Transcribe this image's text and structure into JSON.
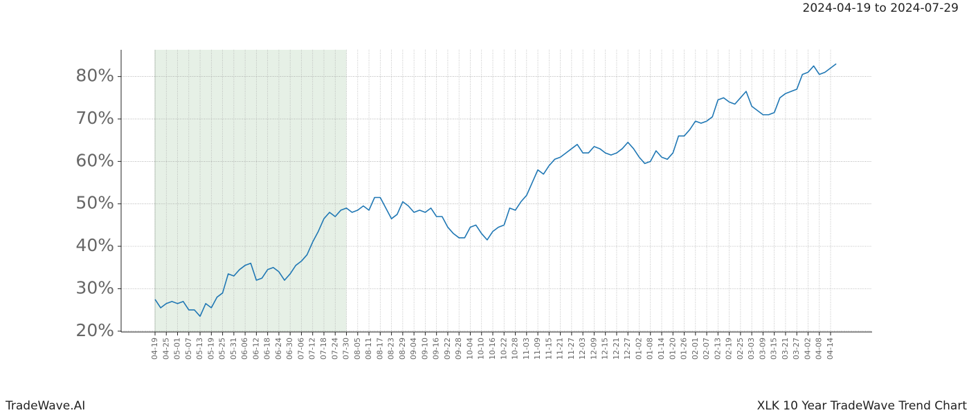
{
  "chart_data": {
    "type": "line",
    "title": "2024-04-19 to 2024-07-29",
    "footer_left": "TradeWave.AI",
    "footer_right": "XLK 10 Year TradeWave Trend Chart",
    "categories": [
      "04-19",
      null,
      "04-25",
      null,
      "05-01",
      null,
      "05-07",
      null,
      "05-13",
      null,
      "05-19",
      null,
      "05-25",
      null,
      "05-31",
      null,
      "06-06",
      null,
      "06-12",
      null,
      "06-18",
      null,
      "06-24",
      null,
      "06-30",
      null,
      "07-06",
      null,
      "07-12",
      null,
      "07-18",
      null,
      "07-24",
      null,
      "07-30",
      null,
      "08-05",
      null,
      "08-11",
      null,
      "08-17",
      null,
      "08-23",
      null,
      "08-29",
      null,
      "09-04",
      null,
      "09-10",
      null,
      "09-16",
      null,
      "09-22",
      null,
      "09-28",
      null,
      "10-04",
      null,
      "10-10",
      null,
      "10-16",
      null,
      "10-22",
      null,
      "10-28",
      null,
      "11-03",
      null,
      "11-09",
      null,
      "11-15",
      null,
      "11-21",
      null,
      "11-27",
      null,
      "12-03",
      null,
      "12-09",
      null,
      "12-15",
      null,
      "12-21",
      null,
      "12-27",
      null,
      "01-02",
      null,
      "01-08",
      null,
      "01-14",
      null,
      "01-20",
      null,
      "01-26",
      null,
      "02-01",
      null,
      "02-07",
      null,
      "02-13",
      null,
      "02-19",
      null,
      "02-25",
      null,
      "03-03",
      null,
      "03-09",
      null,
      "03-15",
      null,
      "03-21",
      null,
      "03-27",
      null,
      "04-02",
      null,
      "04-08",
      null,
      "04-14",
      null
    ],
    "series": [
      {
        "color": "#1f77b4",
        "values": [
          27.5,
          25.5,
          26.5,
          27,
          26.5,
          27,
          25,
          25,
          23.5,
          26.5,
          25.5,
          28,
          29,
          33.5,
          33,
          34.5,
          35.5,
          36,
          32,
          32.5,
          34.5,
          35,
          34,
          32,
          33.5,
          35.5,
          36.5,
          38,
          41,
          43.5,
          46.5,
          48,
          47,
          48.5,
          49,
          48,
          48.5,
          49.5,
          48.5,
          51.5,
          51.5,
          49,
          46.5,
          47.5,
          50.5,
          49.5,
          48,
          48.5,
          48,
          49,
          47,
          47,
          44.5,
          43,
          42,
          42,
          44.5,
          45,
          43,
          41.5,
          43.5,
          44.5,
          45,
          49,
          48.5,
          50.5,
          52,
          55,
          58,
          57,
          59,
          60.5,
          61,
          62,
          63,
          64,
          62,
          62,
          63.5,
          63,
          62,
          61.5,
          62,
          63,
          64.5,
          63,
          61,
          59.5,
          60,
          62.5,
          61,
          60.5,
          62,
          66,
          66,
          67.5,
          69.5,
          69,
          69.5,
          70.5,
          74.5,
          75,
          74,
          73.5,
          75,
          76.5,
          73,
          72,
          71,
          71,
          71.5,
          75,
          76,
          76.5,
          77,
          80.5,
          81,
          82.5,
          80.5,
          81,
          82,
          83
        ]
      }
    ],
    "shade": {
      "from": "04-19",
      "to": "07-30",
      "color": "#e6f0e6"
    },
    "ylim": [
      19.8,
      86.3
    ],
    "yticks": [
      {
        "value": 20,
        "label": "20%"
      },
      {
        "value": 30,
        "label": "30%"
      },
      {
        "value": 40,
        "label": "40%"
      },
      {
        "value": 50,
        "label": "50%"
      },
      {
        "value": 60,
        "label": "60%"
      },
      {
        "value": 70,
        "label": "70%"
      },
      {
        "value": 80,
        "label": "80%"
      }
    ],
    "grid": true
  }
}
